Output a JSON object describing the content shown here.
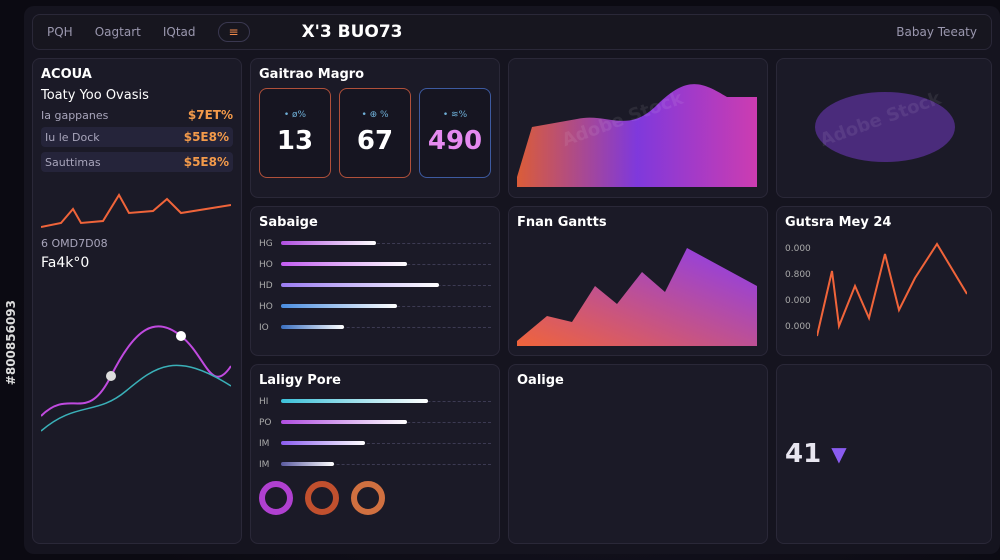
{
  "nav": {
    "items": [
      "PQH",
      "Oagtart",
      "IQtad"
    ],
    "title": "X'3 BUO73",
    "filter": "Babay Teeaty",
    "badge": "≡"
  },
  "left": {
    "title": "ACOUA",
    "subtitle": "Toaty Yoo Ovasis",
    "rows": [
      {
        "label": "Ia gappanes",
        "value": "$7ET%"
      },
      {
        "label": "Iu le Dock",
        "value": "$5E8%"
      },
      {
        "label": "Sauttimas",
        "value": "$5E8%"
      }
    ],
    "footer": "Fa4k°0",
    "note": "6 OMD7D08"
  },
  "kpi": {
    "title": "Gaitrao Magro",
    "cards": [
      {
        "value": "13",
        "sub": "• ø%"
      },
      {
        "value": "67",
        "sub": "• ⊕ %"
      },
      {
        "value": "490",
        "sub": "• ≋%"
      }
    ]
  },
  "sliders": [
    {
      "title": "Sabaige",
      "lines": [
        {
          "label": "HG",
          "level": 0.45,
          "color": "#b04ee0"
        },
        {
          "label": "HO",
          "level": 0.6,
          "color": "#c25cf0"
        },
        {
          "label": "HD",
          "level": 0.75,
          "color": "#9b7cf2"
        },
        {
          "label": "HO",
          "level": 0.55,
          "color": "#4a8de0"
        },
        {
          "label": "IO",
          "level": 0.3,
          "color": "#3a6fc0"
        }
      ]
    },
    {
      "title": "Laligy Pore",
      "lines": [
        {
          "label": "HI",
          "level": 0.7,
          "color": "#3cc0d8"
        },
        {
          "label": "PO",
          "level": 0.6,
          "color": "#b04ee0"
        },
        {
          "label": "IM",
          "level": 0.4,
          "color": "#8a5cf0"
        },
        {
          "label": "IM",
          "level": 0.25,
          "color": "#5a5aa0"
        }
      ]
    }
  ],
  "charts": {
    "area_title": "Fnan Gantts",
    "spike_title": "Gutsra Mey 24",
    "spike_ticks": [
      "0.000",
      "0.800",
      "0.000",
      "0.000"
    ],
    "mini_value": "41"
  },
  "bottom": {
    "label": "Oalige"
  },
  "watermark": {
    "text": "Adobe Stock",
    "id": "#800856093"
  },
  "colors": {
    "accent_orange": "#f0643a",
    "accent_pink": "#e040e0",
    "accent_purple": "#8a4cf0",
    "accent_blue": "#3cc0d8",
    "bg": "#15141f"
  }
}
